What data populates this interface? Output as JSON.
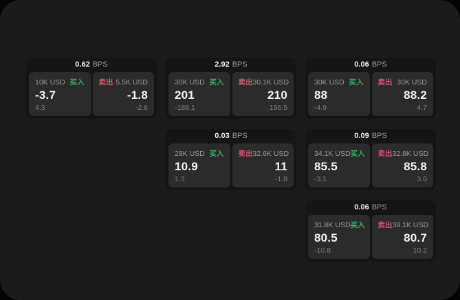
{
  "colors": {
    "surface_bg": "#1b1b1b",
    "card_bg": "#151515",
    "panel_bg": "#2b2b2b",
    "text_primary": "#f2f2f2",
    "text_muted": "#9a9a9a",
    "text_dim": "#7d7d7d",
    "buy_green": "#41a868",
    "sell_red": "#cf5670"
  },
  "labels": {
    "bps": "BPS",
    "buy": "买入",
    "sell": "卖出"
  },
  "cards": [
    {
      "row": 1,
      "col": 1,
      "bps": "0.62",
      "buy": {
        "amount": "10K USD",
        "value": "-3.7",
        "sub": "4.3"
      },
      "sell": {
        "amount": "5.5K USD",
        "value": "-1.8",
        "sub": "-2.6"
      }
    },
    {
      "row": 1,
      "col": 2,
      "bps": "2.92",
      "buy": {
        "amount": "30K USD",
        "value": "201",
        "sub": "-188.1"
      },
      "sell": {
        "amount": "30.1K USD",
        "value": "210",
        "sub": "196.5"
      }
    },
    {
      "row": 1,
      "col": 3,
      "bps": "0.06",
      "buy": {
        "amount": "30K USD",
        "value": "88",
        "sub": "-4.9"
      },
      "sell": {
        "amount": "30K USD",
        "value": "88.2",
        "sub": "4.7"
      }
    },
    {
      "row": 2,
      "col": 2,
      "bps": "0.03",
      "buy": {
        "amount": "28K USD",
        "value": "10.9",
        "sub": "1.3"
      },
      "sell": {
        "amount": "32.6K USD",
        "value": "11",
        "sub": "-1.8"
      }
    },
    {
      "row": 2,
      "col": 3,
      "bps": "0.09",
      "buy": {
        "amount": "34.1K USD",
        "value": "85.5",
        "sub": "-3.1"
      },
      "sell": {
        "amount": "32.8K USD",
        "value": "85.8",
        "sub": "3.0"
      }
    },
    {
      "row": 3,
      "col": 3,
      "bps": "0.06",
      "buy": {
        "amount": "31.8K USD",
        "value": "80.5",
        "sub": "-10.8"
      },
      "sell": {
        "amount": "39.1K USD",
        "value": "80.7",
        "sub": "10.2"
      }
    }
  ]
}
